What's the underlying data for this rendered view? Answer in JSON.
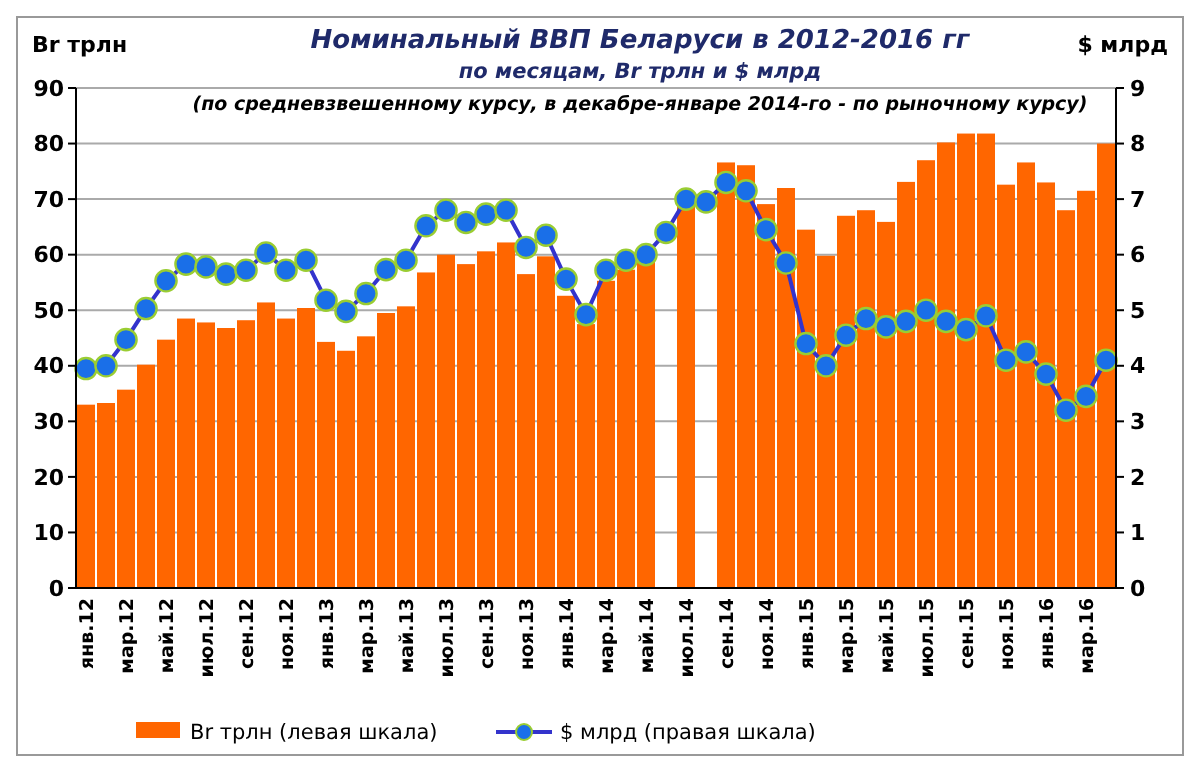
{
  "chart_data": {
    "type": "bar",
    "title": "Номинальный ВВП Беларуси в 2012-2016  гг",
    "subtitle": "по месяцам,  Br трлн и $ млрд",
    "annotations": [
      "(по средневзвешенному курсу, в декабре-январе 2014-го - по рыночному курсу)"
    ],
    "ylabel": "Br трлн",
    "y2label": "$ млрд",
    "categories": [
      "янв.12",
      null,
      "мар.12",
      null,
      "май.12",
      null,
      "июл.12",
      null,
      "сен.12",
      null,
      "ноя.12",
      null,
      "янв.13",
      null,
      "мар.13",
      null,
      "май.13",
      null,
      "июл.13",
      null,
      "сен.13",
      null,
      "ноя.13",
      null,
      "янв.14",
      null,
      "мар.14",
      null,
      "май.14",
      null,
      "июл.14",
      null,
      "сен.14",
      null,
      "ноя.14",
      null,
      "янв.15",
      null,
      "мар.15",
      null,
      "май.15",
      null,
      "июл.15",
      null,
      "сен.15",
      null,
      "ноя.15",
      null,
      "янв.16",
      null,
      "мар.16",
      null
    ],
    "series": [
      {
        "name": "Br трлн (левая шкала)",
        "color": "#ff6600",
        "values": [
          33,
          33.3,
          35.7,
          40.2,
          44.7,
          48.5,
          47.8,
          46.8,
          48.2,
          51.4,
          48.5,
          50.4,
          44.3,
          42.7,
          45.3,
          49.5,
          50.7,
          56.8,
          60,
          58.3,
          60.6,
          62.2,
          56.5,
          59.7,
          52.6,
          47.5,
          55.3,
          57.3,
          59.5,
          null,
          70,
          null,
          76.6,
          76.1,
          69.1,
          72,
          64.5,
          59.8,
          67,
          68,
          65.9,
          73.1,
          77,
          80.2,
          81.8,
          81.8,
          72.6,
          76.6,
          73,
          68,
          71.5,
          80
        ]
      },
      {
        "name": "$ млрд (правая шкала)",
        "type": "line",
        "axis": "y2",
        "color": "#3333cc",
        "values": [
          3.95,
          4.0,
          4.47,
          5.03,
          5.53,
          5.83,
          5.78,
          5.65,
          5.72,
          6.03,
          5.72,
          5.9,
          5.18,
          4.98,
          5.3,
          5.73,
          5.9,
          6.52,
          6.8,
          6.58,
          6.73,
          6.8,
          6.13,
          6.35,
          5.56,
          4.92,
          5.72,
          5.9,
          6.0,
          6.4,
          7.0,
          6.95,
          7.3,
          7.15,
          6.45,
          5.85,
          4.4,
          4.0,
          4.55,
          4.85,
          4.7,
          4.8,
          5.0,
          4.8,
          4.65,
          4.9,
          4.1,
          4.25,
          3.85,
          3.2,
          3.45,
          4.1
        ]
      }
    ],
    "ylim": [
      0,
      90
    ],
    "yticks": [
      0,
      10,
      20,
      30,
      40,
      50,
      60,
      70,
      80,
      90
    ],
    "y2lim": [
      0,
      9
    ],
    "y2ticks": [
      0,
      1,
      2,
      3,
      4,
      5,
      6,
      7,
      8,
      9
    ],
    "grid": "y",
    "legend": "bottom",
    "marker": "circle"
  }
}
